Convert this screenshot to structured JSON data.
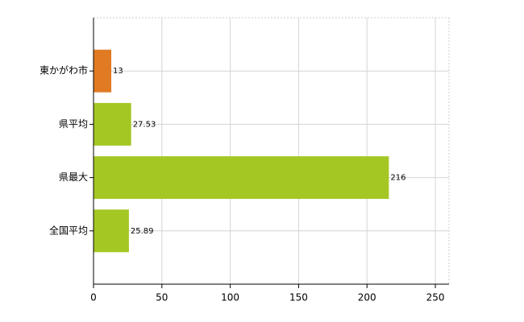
{
  "chart_data": {
    "type": "barh",
    "categories": [
      "東かがわ市",
      "県平均",
      "県最大",
      "全国平均"
    ],
    "values": [
      13,
      27.53,
      216,
      25.89
    ],
    "colors": [
      "#e07b24",
      "#a4c723",
      "#a4c723",
      "#a4c723"
    ],
    "xlim": [
      0,
      260
    ],
    "xticks": [
      0,
      50,
      100,
      150,
      200,
      250
    ],
    "grid": true
  }
}
